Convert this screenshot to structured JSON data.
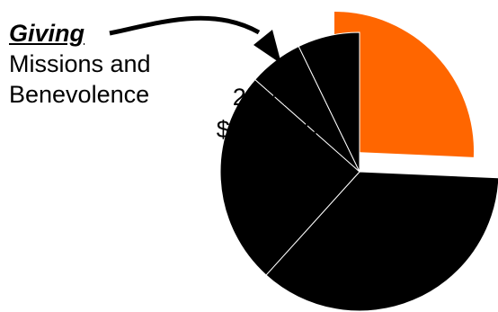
{
  "annotation": {
    "heading": "Giving",
    "line1": "Missions and",
    "line2": "Benevolence"
  },
  "chart_data": {
    "type": "pie",
    "title": "",
    "highlight": {
      "percent_label": "25.7%",
      "amount_label": "$102,000",
      "color": "#ff6600"
    },
    "slices": [
      {
        "value": 25.7,
        "color": "#ff6600",
        "exploded": true
      },
      {
        "value": 36.0,
        "color": "#000000",
        "exploded": false
      },
      {
        "value": 24.8,
        "color": "#000000",
        "exploded": false
      },
      {
        "value": 6.3,
        "color": "#000000",
        "exploded": false
      },
      {
        "value": 7.2,
        "color": "#000000",
        "exploded": false
      }
    ],
    "slice_border_color": "#ffffff",
    "start_angle_deg": 90,
    "direction": "clockwise"
  }
}
